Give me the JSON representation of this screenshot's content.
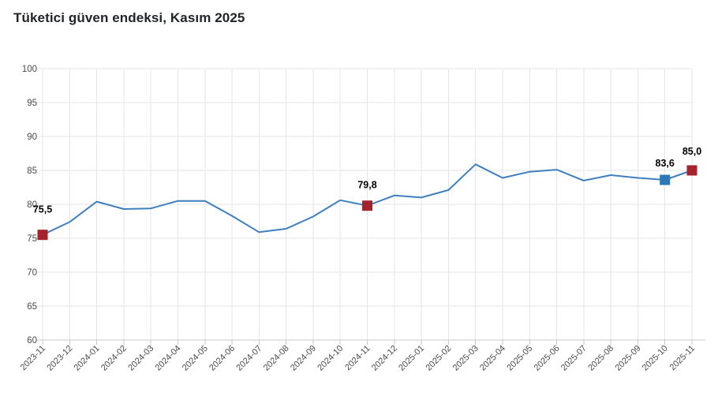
{
  "chart_data": {
    "type": "line",
    "title": "Tüketici güven endeksi, Kasım 2025",
    "x": [
      "2023-11",
      "2023-12",
      "2024-01",
      "2024-02",
      "2024-03",
      "2024-04",
      "2024-05",
      "2024-06",
      "2024-07",
      "2024-08",
      "2024-09",
      "2024-10",
      "2024-11",
      "2024-12",
      "2025-01",
      "2025-02",
      "2025-03",
      "2025-04",
      "2025-05",
      "2025-06",
      "2025-07",
      "2025-08",
      "2025-09",
      "2025-10",
      "2025-11"
    ],
    "values": [
      75.5,
      77.4,
      80.4,
      79.3,
      79.4,
      80.5,
      80.5,
      78.3,
      75.9,
      76.4,
      78.2,
      80.6,
      79.8,
      81.3,
      81.0,
      82.1,
      85.9,
      83.9,
      84.8,
      85.1,
      83.5,
      84.3,
      83.9,
      83.6,
      85.0
    ],
    "ylim": [
      60,
      100
    ],
    "yticks": [
      60,
      65,
      70,
      75,
      80,
      85,
      90,
      95,
      100
    ],
    "grid": true,
    "legend": "none",
    "xlabel": "",
    "ylabel": "",
    "annotations": [
      {
        "x": "2023-11",
        "label": "75,5",
        "marker": "red",
        "dy": -28
      },
      {
        "x": "2024-11",
        "label": "79,8",
        "marker": "red",
        "dy": -22
      },
      {
        "x": "2025-10",
        "label": "83,6",
        "marker": "blue",
        "dy": -17
      },
      {
        "x": "2025-11",
        "label": "85,0",
        "marker": "red",
        "dy": -20
      }
    ]
  },
  "colors": {
    "line": "#3f7fbe",
    "marker_red": "#a4232c",
    "marker_blue": "#2f78b6",
    "grid": "#e6e6e6",
    "axis_line": "#c8c8c8",
    "axis_label": "#4a4a4a",
    "annotation_text": "#000000",
    "title": "#212529",
    "background": "#ffffff"
  }
}
